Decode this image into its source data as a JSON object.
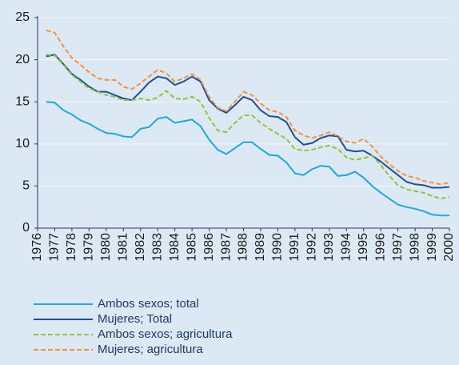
{
  "chart_data": {
    "type": "line",
    "x": [
      1976.5,
      1977,
      1977.5,
      1978,
      1978.5,
      1979,
      1979.5,
      1980,
      1980.5,
      1981,
      1981.5,
      1982,
      1982.5,
      1983,
      1983.5,
      1984,
      1984.5,
      1985,
      1985.5,
      1986,
      1986.5,
      1987,
      1987.5,
      1988,
      1988.5,
      1989,
      1989.5,
      1990,
      1990.5,
      1991,
      1991.5,
      1992,
      1992.5,
      1993,
      1993.5,
      1994,
      1994.5,
      1995,
      1995.5,
      1996,
      1996.5,
      1997,
      1997.5,
      1998,
      1998.5,
      1999,
      1999.5,
      2000
    ],
    "series": [
      {
        "name": "Ambos sexos; total",
        "color": "#1ea7e1",
        "dashed": false,
        "values": [
          15.0,
          14.9,
          14.0,
          13.5,
          12.8,
          12.4,
          11.8,
          11.3,
          11.2,
          10.9,
          10.8,
          11.8,
          12.0,
          13.0,
          13.2,
          12.5,
          12.7,
          12.9,
          12.1,
          10.5,
          9.3,
          8.8,
          9.5,
          10.2,
          10.2,
          9.4,
          8.7,
          8.6,
          7.8,
          6.5,
          6.3,
          7.0,
          7.4,
          7.3,
          6.2,
          6.3,
          6.7,
          6.0,
          5.0,
          4.2,
          3.5,
          2.8,
          2.5,
          2.3,
          2.0,
          1.6,
          1.5,
          1.5
        ]
      },
      {
        "name": "Mujeres; Total",
        "color": "#1f4e9c",
        "dashed": false,
        "values": [
          20.4,
          20.6,
          19.5,
          18.3,
          17.6,
          16.8,
          16.2,
          16.2,
          15.8,
          15.4,
          15.2,
          16.2,
          17.3,
          18.0,
          17.8,
          17.0,
          17.4,
          18.0,
          17.4,
          15.2,
          14.2,
          13.7,
          14.6,
          15.6,
          15.2,
          14.0,
          13.3,
          13.2,
          12.6,
          10.8,
          9.9,
          10.1,
          10.7,
          11.0,
          10.9,
          9.3,
          9.1,
          9.2,
          8.6,
          7.9,
          7.1,
          6.3,
          5.5,
          5.2,
          5.1,
          4.8,
          4.8,
          4.9
        ]
      },
      {
        "name": "Ambos sexos; agricultura",
        "color": "#8cc63f",
        "dashed": true,
        "values": [
          20.6,
          20.5,
          19.4,
          18.2,
          17.4,
          16.6,
          16.2,
          15.8,
          15.6,
          15.2,
          15.2,
          15.4,
          15.2,
          15.5,
          16.3,
          15.4,
          15.3,
          15.6,
          15.0,
          13.1,
          11.6,
          11.4,
          12.5,
          13.4,
          13.4,
          12.5,
          11.8,
          11.2,
          10.6,
          9.4,
          9.2,
          9.3,
          9.6,
          9.8,
          9.4,
          8.4,
          8.1,
          8.3,
          8.6,
          7.5,
          6.2,
          5.1,
          4.6,
          4.4,
          4.2,
          3.8,
          3.5,
          3.7
        ]
      },
      {
        "name": "Mujeres; agricultura",
        "color": "#f7923a",
        "dashed": true,
        "values": [
          23.5,
          23.2,
          21.6,
          20.2,
          19.4,
          18.5,
          17.8,
          17.6,
          17.6,
          16.8,
          16.5,
          17.2,
          18.0,
          18.8,
          18.4,
          17.4,
          17.8,
          18.3,
          17.6,
          15.6,
          14.3,
          13.9,
          15.0,
          16.2,
          15.8,
          14.8,
          14.0,
          13.8,
          13.2,
          11.6,
          11.0,
          10.7,
          11.0,
          11.4,
          10.9,
          10.3,
          10.1,
          10.6,
          9.7,
          8.5,
          7.6,
          6.8,
          6.2,
          6.0,
          5.6,
          5.4,
          5.2,
          5.4
        ]
      }
    ],
    "xlim": [
      1976,
      2000
    ],
    "xticks": [
      1976,
      1977,
      1978,
      1979,
      1980,
      1981,
      1982,
      1983,
      1984,
      1985,
      1986,
      1987,
      1988,
      1989,
      1990,
      1991,
      1992,
      1993,
      1994,
      1995,
      1996,
      1997,
      1998,
      1999,
      2000
    ],
    "ylim": [
      0,
      25
    ],
    "yticks": [
      0,
      5,
      10,
      15,
      20,
      25
    ],
    "grid": true
  }
}
